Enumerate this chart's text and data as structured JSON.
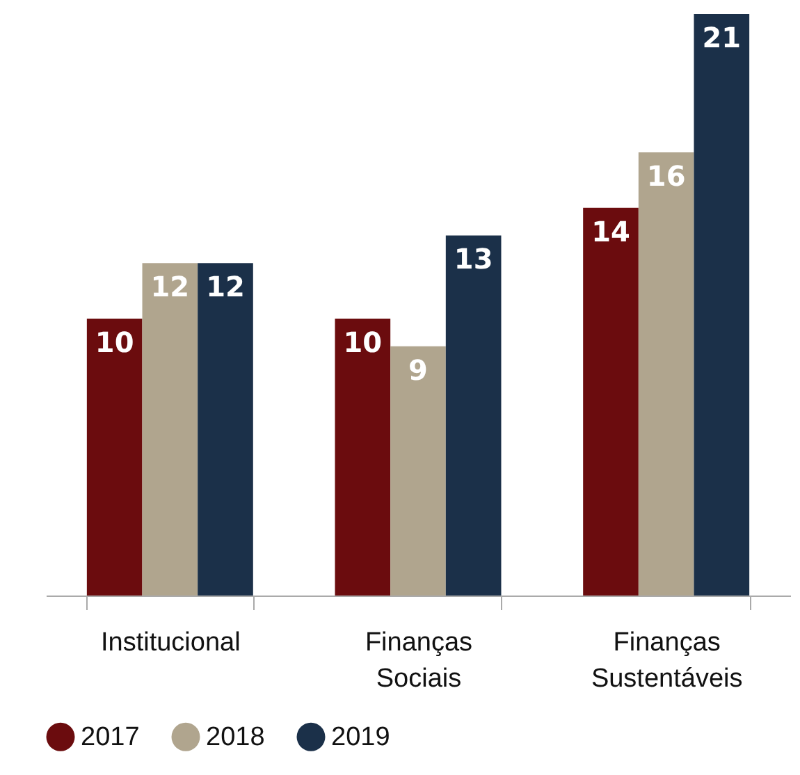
{
  "chart_data": {
    "type": "bar",
    "categories": [
      "Institucional",
      "Finanças Sociais",
      "Finanças Sustentáveis"
    ],
    "series": [
      {
        "name": "2017",
        "color": "#6b0c0e",
        "values": [
          10,
          10,
          14
        ]
      },
      {
        "name": "2018",
        "color": "#b0a58e",
        "values": [
          12,
          9,
          16
        ]
      },
      {
        "name": "2019",
        "color": "#1b3049",
        "values": [
          12,
          13,
          21
        ]
      }
    ],
    "data_labels": true,
    "legend": "bottom",
    "grid": false
  }
}
